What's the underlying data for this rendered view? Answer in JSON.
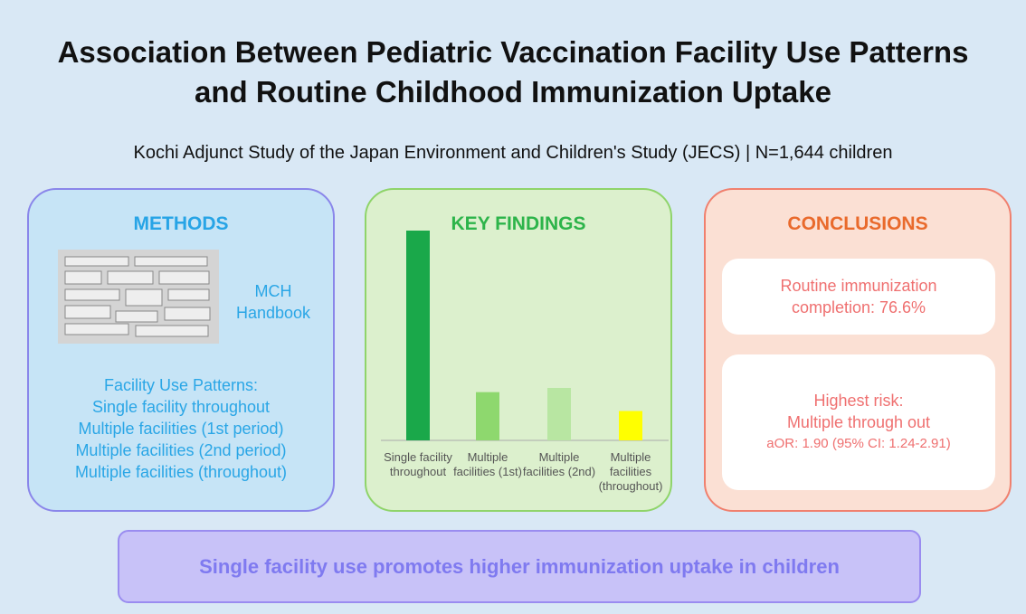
{
  "header": {
    "title": "Association Between Pediatric Vaccination Facility Use Patterns and Routine Childhood Immunization Uptake",
    "subtitle": "Kochi Adjunct Study of the Japan Environment and Children's Study (JECS) | N=1,644 children"
  },
  "methods": {
    "heading": "METHODS",
    "image_caption": "MCH Handbook",
    "patterns_title": "Facility Use Patterns:",
    "patterns": [
      "Single facility throughout",
      "Multiple facilities (1st period)",
      "Multiple facilities (2nd period)",
      "Multiple facilities (throughout)"
    ]
  },
  "key_findings": {
    "heading": "KEY FINDINGS"
  },
  "chart_data": {
    "type": "bar",
    "categories": [
      "Single facility throughout",
      "Multiple facilities (1st)",
      "Multiple facilities (2nd)",
      "Multiple facilities (throughout)"
    ],
    "values": [
      100,
      23,
      25,
      14
    ],
    "colors": [
      "#1aa84a",
      "#8ed86e",
      "#b8e6a2",
      "#ffff00"
    ],
    "ylim": [
      0,
      100
    ]
  },
  "conclusions": {
    "heading": "CONCLUSIONS",
    "completion": "Routine immunization completion: 76.6%",
    "risk_title": "Highest risk:",
    "risk_group": "Multiple through out",
    "risk_stat": "aOR: 1.90 (95% CI: 1.24-2.91)"
  },
  "footer": "Single facility use promotes higher immunization uptake in children"
}
